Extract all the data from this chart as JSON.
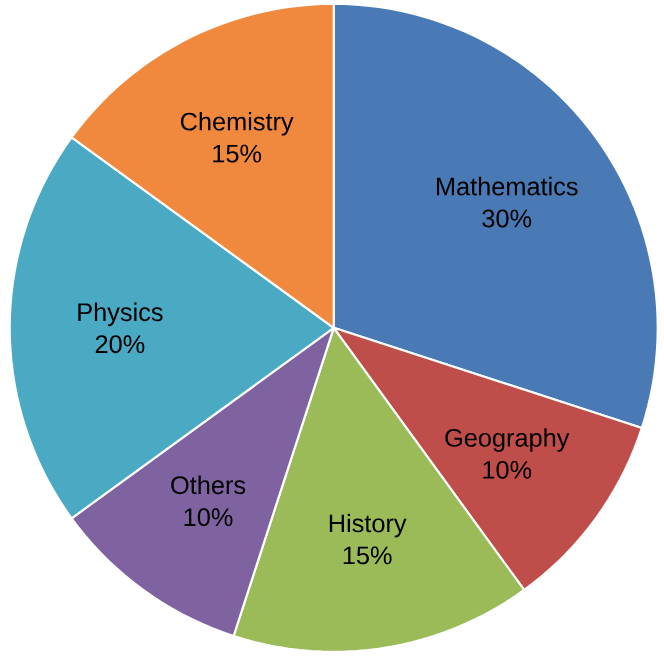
{
  "chart_data": {
    "type": "pie",
    "categories": [
      "Mathematics",
      "Geography",
      "History",
      "Others",
      "Physics",
      "Chemistry"
    ],
    "values": [
      30,
      10,
      15,
      10,
      20,
      15
    ],
    "value_labels": [
      "30%",
      "10%",
      "15%",
      "10%",
      "20%",
      "15%"
    ],
    "colors": [
      "#4a7ab5",
      "#bf4e4b",
      "#9bbb59",
      "#7f63a1",
      "#4aaac4",
      "#f0893e"
    ]
  }
}
